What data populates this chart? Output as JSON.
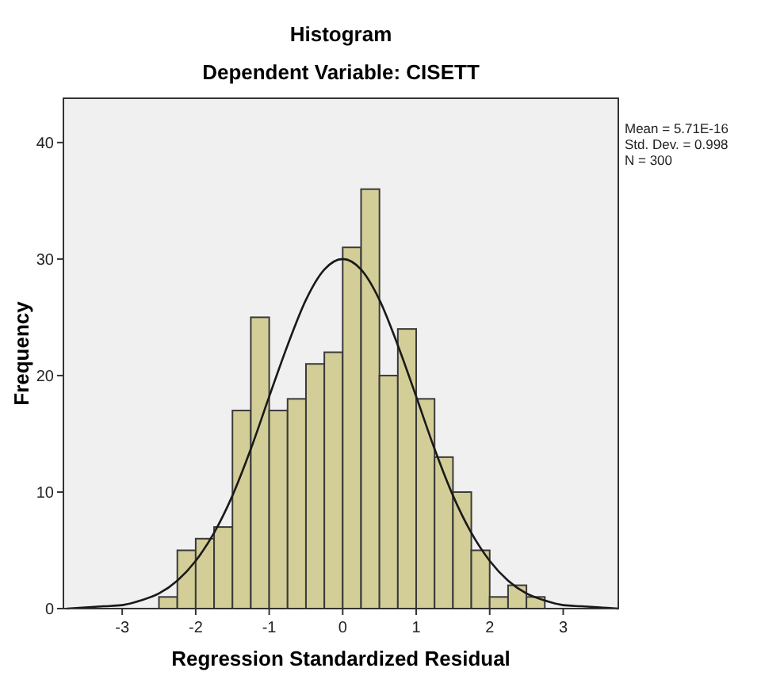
{
  "chart_data": {
    "type": "histogram",
    "title": "Histogram",
    "subtitle": "Dependent Variable: CISETT",
    "xlabel": "Regression Standardized Residual",
    "ylabel": "Frequency",
    "bins": [
      -2.5,
      -2.25,
      -2,
      -1.75,
      -1.5,
      -1.25,
      -1,
      -0.75,
      -0.5,
      -0.25,
      0,
      0.25,
      0.5,
      0.75,
      1,
      1.25,
      1.5,
      1.75,
      2,
      2.25,
      2.5,
      2.75
    ],
    "values": [
      1,
      5,
      6,
      7,
      17,
      25,
      17,
      18,
      21,
      22,
      31,
      36,
      20,
      24,
      18,
      13,
      10,
      5,
      1,
      2,
      1
    ],
    "color": "#d3ce97",
    "series": [
      {
        "type": "line",
        "color": "#1a1a1a",
        "x": [
          -3.75,
          -3.5,
          -3.25,
          -3,
          -2.75,
          -2.5,
          -2.25,
          -2,
          -1.75,
          -1.5,
          -1.25,
          -1,
          -0.75,
          -0.5,
          -0.25,
          0,
          0.25,
          0.5,
          0.75,
          1,
          1.25,
          1.5,
          1.75,
          2,
          2.25,
          2.5,
          2.75,
          3,
          3.25,
          3.5,
          3.75
        ],
        "values": [
          0,
          0.1,
          0.2,
          0.3,
          0.7,
          1.3,
          2.4,
          4.1,
          6.5,
          9.7,
          13.7,
          18.2,
          22.6,
          26.5,
          29.1,
          30,
          29.1,
          26.5,
          22.6,
          18.2,
          13.7,
          9.7,
          6.5,
          4.1,
          2.4,
          1.3,
          0.7,
          0.3,
          0.2,
          0.1,
          0
        ]
      }
    ],
    "xlim": [
      -3.8,
      3.75
    ],
    "ylim": [
      0,
      43.8
    ],
    "xticks": [
      -3,
      -2,
      -1,
      0,
      1,
      2,
      3
    ],
    "yticks": [
      0,
      10,
      20,
      30,
      40
    ],
    "annotations": [
      "Mean = 5.71E-16",
      "Std. Dev. = 0.998",
      "N = 300"
    ]
  }
}
